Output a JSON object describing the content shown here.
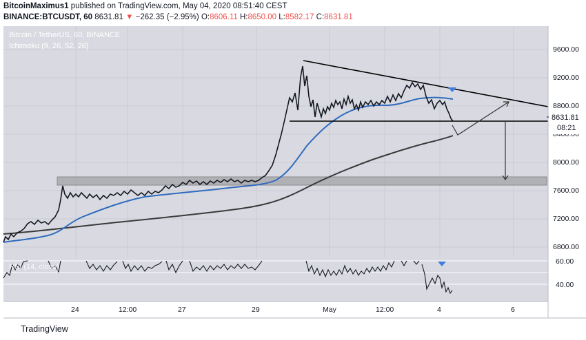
{
  "header": {
    "author": "BitcoinMaximus1",
    "published": " published on TradingView.com, May 04, 2020 08:51:40 CEST",
    "symbol": "BINANCE:BTCUSDT, 60",
    "last": "8631.81",
    "arrow": "▼",
    "change": "−262.35 (−2.95%)",
    "o_label": "O:",
    "o_value": "8606.11",
    "h_label": "H:",
    "h_value": "8650.00",
    "l_label": "L:",
    "l_value": "8582.17",
    "c_label": "C:",
    "c_value": "8631.81"
  },
  "chart": {
    "title": "Bitcoin / TetherUS, 60, BINANCE",
    "indicator": "Ichimoku (9, 26, 52, 26)",
    "rsi_label": "RSI (14, close)",
    "last_price_tag": "8631.81",
    "countdown": "08:21"
  },
  "colors": {
    "background": "#d9dae1",
    "candle": "#131722",
    "ma_blue": "#2f6bbd",
    "ma_dark": "#3a3a3a",
    "arrow_blue": "#3d7fde"
  },
  "price_axis": [
    "9600.00",
    "9200.00",
    "8800.00",
    "8400.00",
    "8000.00",
    "7600.00",
    "7200.00",
    "6800.00"
  ],
  "rsi_axis": [
    "60.00",
    "40.00"
  ],
  "time_axis": [
    "24",
    "12:00",
    "27",
    "29",
    "May",
    "12:00",
    "4",
    "6"
  ],
  "footer": {
    "brand": "TradingView"
  }
}
